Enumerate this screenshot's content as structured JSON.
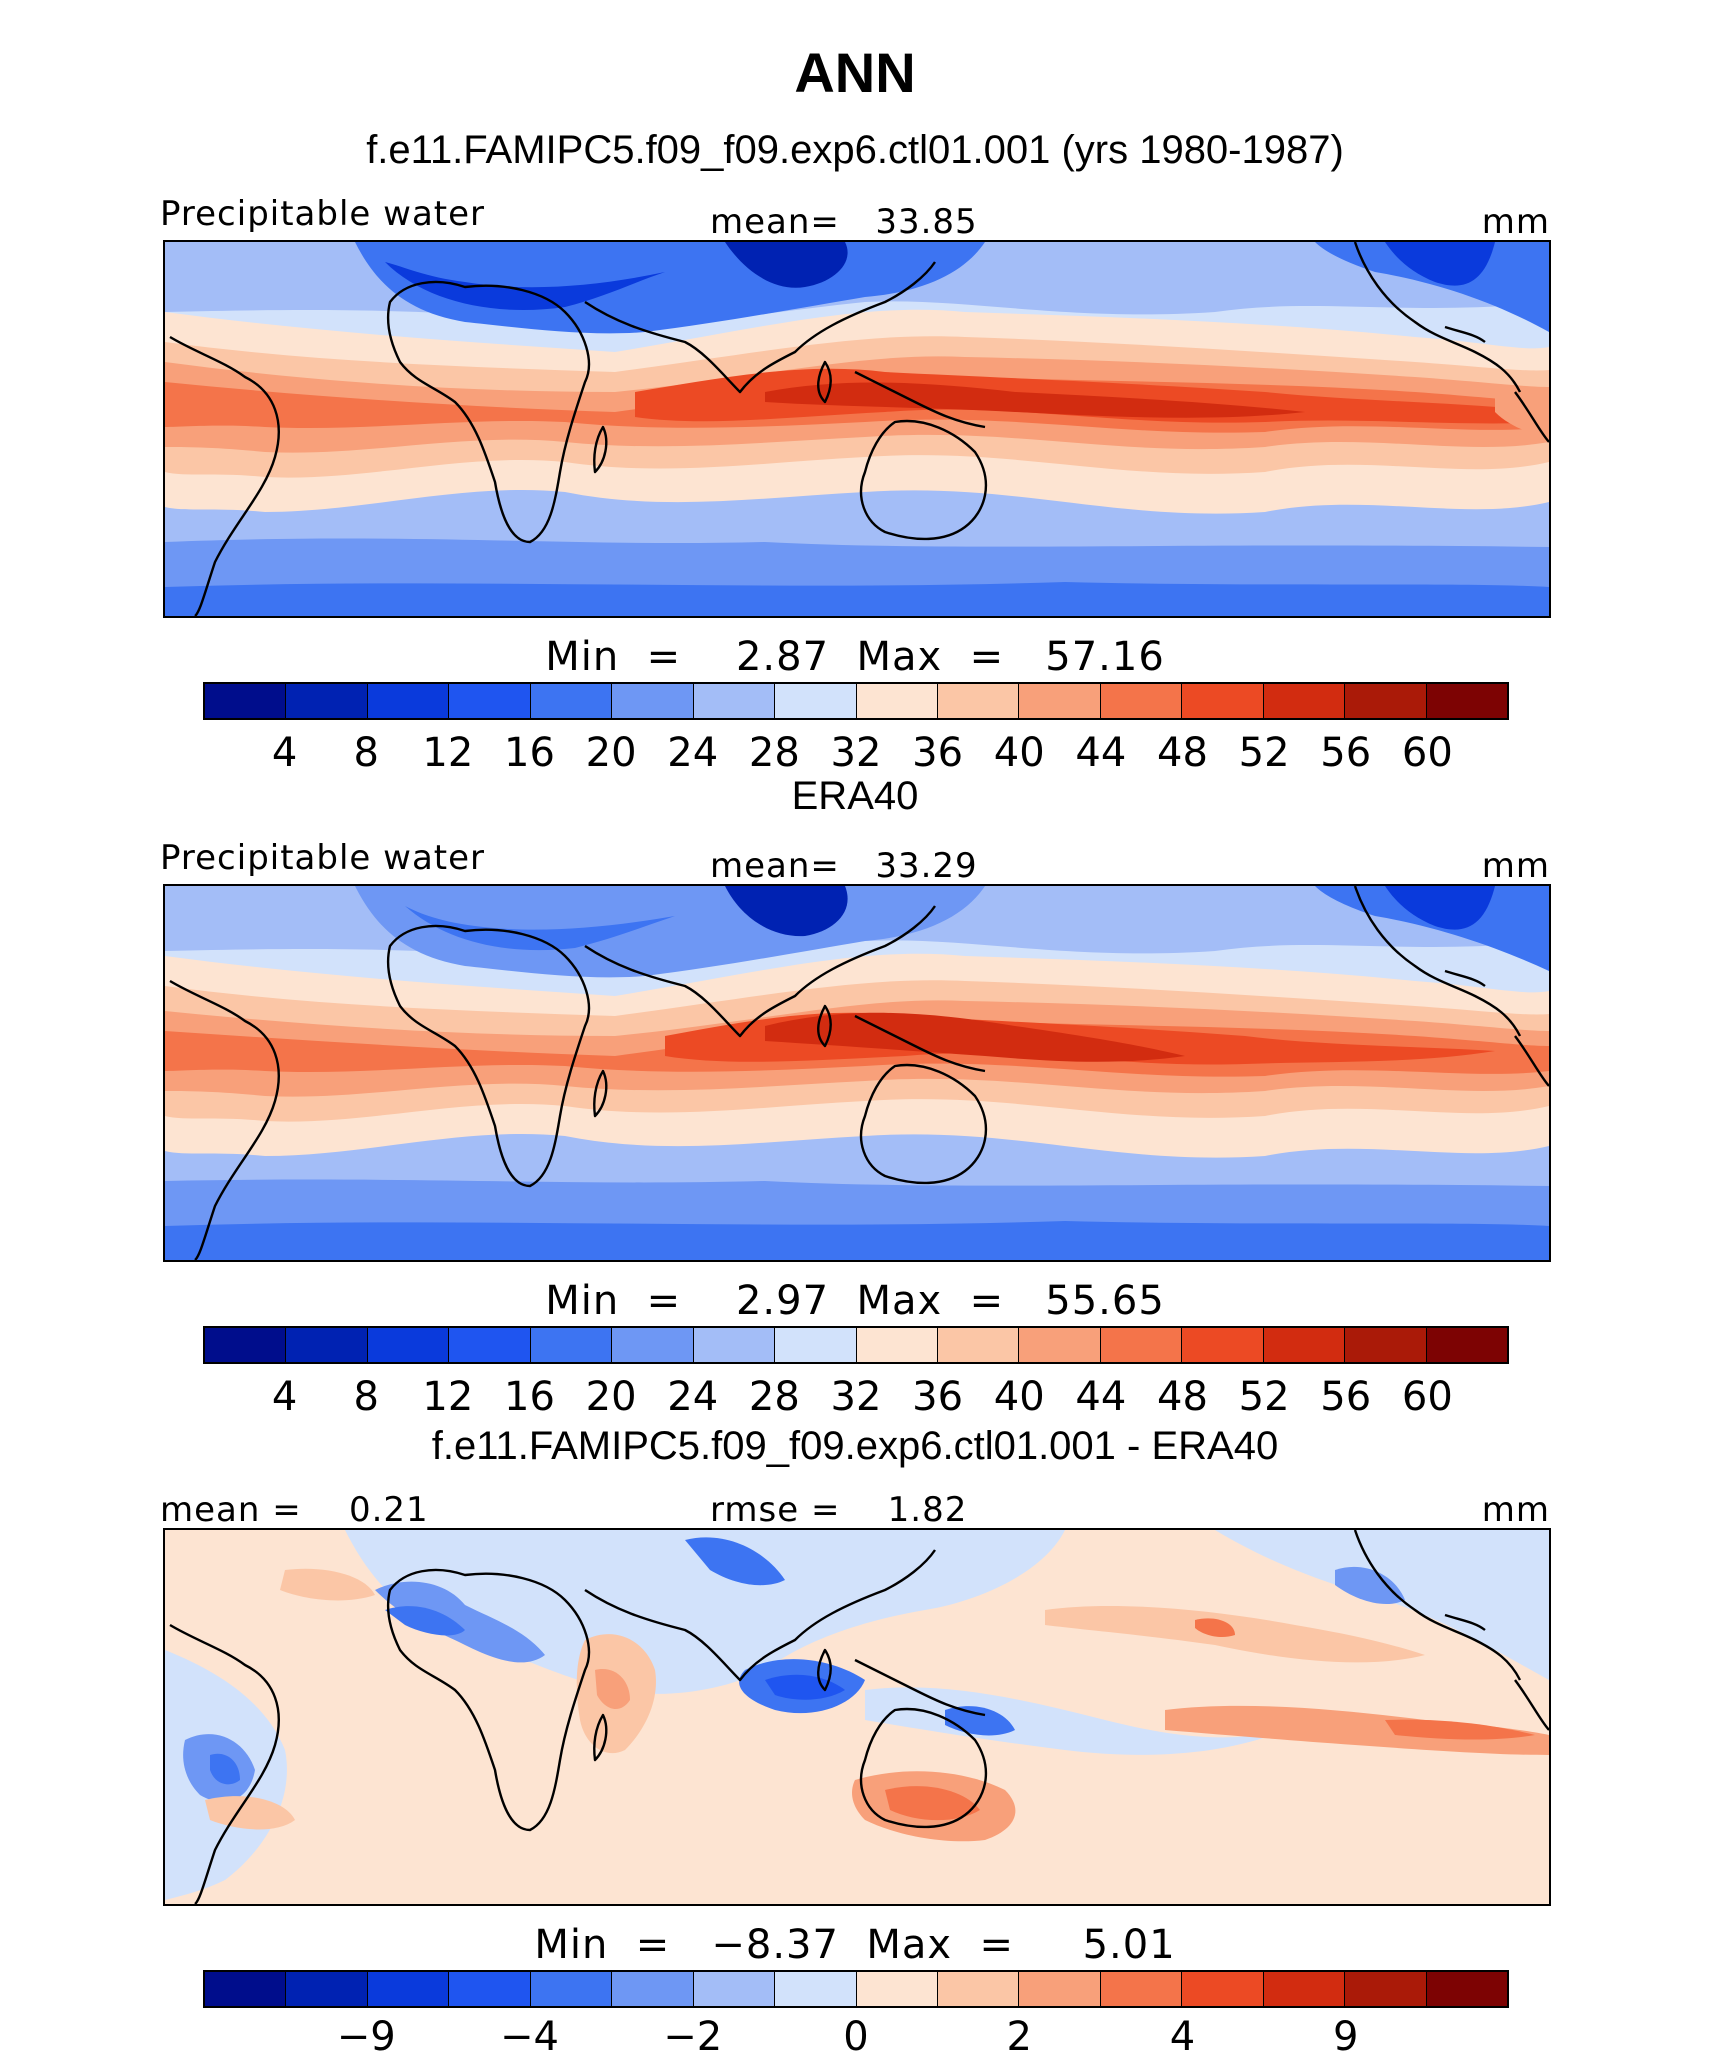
{
  "main_title": "ANN",
  "panels": [
    {
      "title": "f.e11.FAMIPC5.f09_f09.exp6.ctl01.001 (yrs 1980-1987)",
      "left_label": "Precipitable water",
      "center_label": "mean=   33.85",
      "units": "mm",
      "minmax": "Min  =    2.87  Max  =   57.16",
      "colorbar": {
        "colors": [
          "#000d8c",
          "#0022b2",
          "#0a3adc",
          "#1f55f0",
          "#3d74f2",
          "#6e97f4",
          "#a3bdf7",
          "#d2e2fb",
          "#fde4d2",
          "#fbc6a6",
          "#f8a07a",
          "#f4744a",
          "#ec4a24",
          "#d22c10",
          "#aa1a08",
          "#7d0303"
        ],
        "ticks": [
          "4",
          "8",
          "12",
          "16",
          "20",
          "24",
          "28",
          "32",
          "36",
          "40",
          "44",
          "48",
          "52",
          "56",
          "60"
        ]
      }
    },
    {
      "title": "ERA40",
      "left_label": "Precipitable water",
      "center_label": "mean=   33.29",
      "units": "mm",
      "minmax": "Min  =    2.97  Max  =   55.65",
      "colorbar": {
        "colors": [
          "#000d8c",
          "#0022b2",
          "#0a3adc",
          "#1f55f0",
          "#3d74f2",
          "#6e97f4",
          "#a3bdf7",
          "#d2e2fb",
          "#fde4d2",
          "#fbc6a6",
          "#f8a07a",
          "#f4744a",
          "#ec4a24",
          "#d22c10",
          "#aa1a08",
          "#7d0303"
        ],
        "ticks": [
          "4",
          "8",
          "12",
          "16",
          "20",
          "24",
          "28",
          "32",
          "36",
          "40",
          "44",
          "48",
          "52",
          "56",
          "60"
        ]
      }
    },
    {
      "title": "f.e11.FAMIPC5.f09_f09.exp6.ctl01.001 - ERA40",
      "left_label": "mean =    0.21",
      "center_label": "rmse =    1.82",
      "units": "mm",
      "minmax": "Min  =   −8.37  Max  =     5.01",
      "colorbar": {
        "colors": [
          "#000d8c",
          "#0022b2",
          "#0a3adc",
          "#1f55f0",
          "#3d74f2",
          "#6e97f4",
          "#a3bdf7",
          "#d2e2fb",
          "#fde4d2",
          "#fbc6a6",
          "#f8a07a",
          "#f4744a",
          "#ec4a24",
          "#d22c10",
          "#aa1a08",
          "#7d0303"
        ],
        "ticks": [
          "−9",
          "−4",
          "−2",
          "0",
          "2",
          "4",
          "9"
        ]
      }
    }
  ]
}
